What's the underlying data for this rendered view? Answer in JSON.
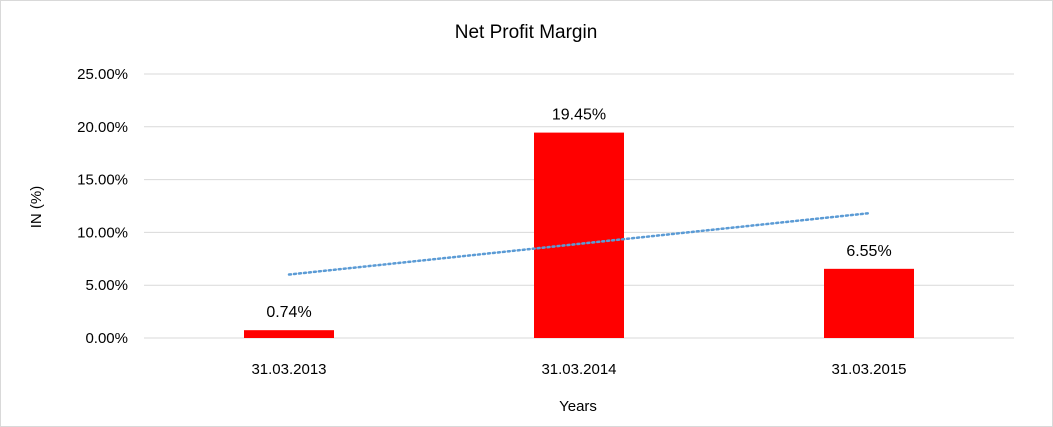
{
  "chart_data": {
    "type": "bar",
    "title": "Net Profit Margin",
    "xlabel": "Years",
    "ylabel": "IN (%)",
    "categories": [
      "31.03.2013",
      "31.03.2014",
      "31.03.2015"
    ],
    "values": [
      0.74,
      19.45,
      6.55
    ],
    "data_labels": [
      "0.74%",
      "19.45%",
      "6.55%"
    ],
    "ylim": [
      0,
      25
    ],
    "yticks": [
      0,
      5,
      10,
      15,
      20,
      25
    ],
    "ytick_labels": [
      "0.00%",
      "5.00%",
      "10.00%",
      "15.00%",
      "20.00%",
      "25.00%"
    ],
    "grid": true,
    "trendline": {
      "type": "linear",
      "style": "dotted",
      "color": "#5b9bd5"
    },
    "bar_color": "#ff0000",
    "gridline_color": "#d9d9d9"
  }
}
